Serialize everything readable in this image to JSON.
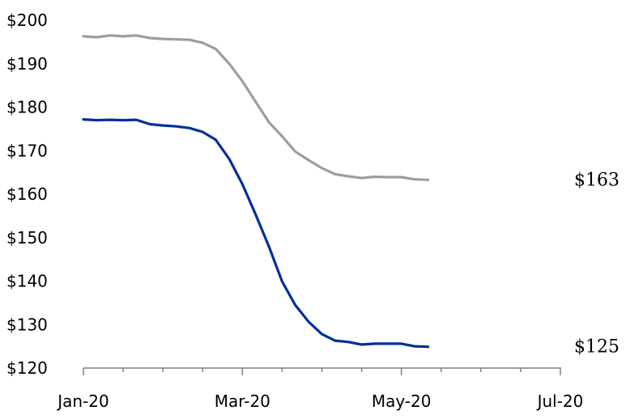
{
  "chart_data": {
    "type": "line",
    "title": "",
    "xlabel": "",
    "ylabel": "",
    "ylim": [
      120,
      200
    ],
    "yticks": [
      "$120",
      "$130",
      "$140",
      "$150",
      "$160",
      "$170",
      "$180",
      "$190",
      "$200"
    ],
    "xticks": [
      "Jan-20",
      "Mar-20",
      "May-20",
      "Jul-20"
    ],
    "x": [
      0,
      0.33,
      0.67,
      1,
      1.33,
      1.67,
      2,
      2.33,
      2.67,
      3,
      3.33,
      3.67,
      4,
      4.33,
      4.67,
      5,
      5.33,
      5.67,
      6,
      6.33,
      6.67,
      7,
      7.33,
      7.67,
      8,
      8.33,
      8.67,
      9,
      9.33,
      9.67,
      10,
      10.33,
      10.67,
      11,
      11.33,
      11.67,
      12
    ],
    "series": [
      {
        "name": "",
        "color": "#9a9ea3",
        "end_label": "$163",
        "values": [
          196.3,
          196.1,
          196.5,
          196.3,
          196.5,
          195.9,
          195.7,
          195.6,
          195.5,
          194.8,
          193.4,
          190.0,
          186.0,
          181.3,
          176.5,
          173.3,
          169.8,
          167.8,
          166.0,
          164.6,
          164.1,
          163.7,
          164.0,
          163.9,
          163.9,
          163.4,
          163.3,
          null,
          null,
          null,
          null,
          null,
          null,
          null,
          null,
          null,
          null
        ]
      },
      {
        "name": "",
        "color": "#00309a",
        "end_label": "$125",
        "values": [
          177.2,
          177.0,
          177.1,
          177.0,
          177.1,
          176.1,
          175.8,
          175.6,
          175.2,
          174.3,
          172.5,
          168.1,
          162.3,
          155.4,
          147.9,
          139.9,
          134.5,
          130.6,
          127.8,
          126.3,
          126.0,
          125.4,
          125.6,
          125.6,
          125.6,
          125.0,
          124.9,
          null,
          null,
          null,
          null,
          null,
          null,
          null,
          null,
          null,
          null
        ]
      }
    ]
  }
}
